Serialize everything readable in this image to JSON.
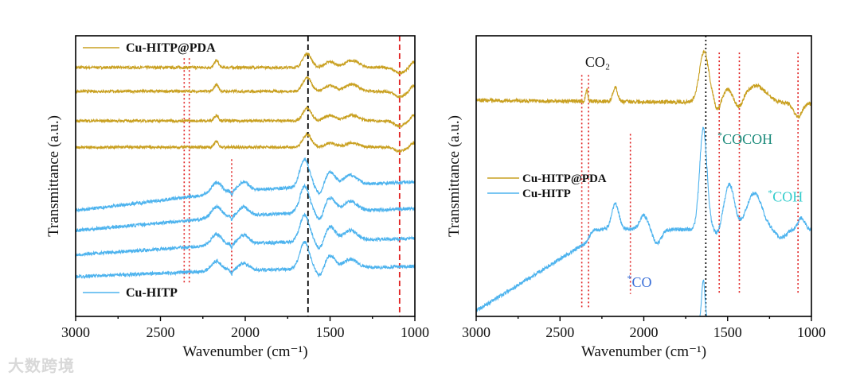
{
  "chart_data": [
    {
      "type": "line",
      "panel": "left",
      "xlabel": "Wavenumber (cm⁻¹)",
      "ylabel": "Transmittance (a.u.)",
      "xlim": [
        3000,
        1000
      ],
      "ylim": [
        0,
        10
      ],
      "xticks": [
        3000,
        2500,
        2000,
        1500,
        1000
      ],
      "legend": [
        {
          "name": "Cu-HITP@PDA",
          "color": "#c9a020",
          "position": "top-left"
        },
        {
          "name": "Cu-HITP",
          "color": "#4db3ee",
          "position": "bottom-left"
        }
      ],
      "vlines": [
        {
          "x": 1630,
          "color": "#000000",
          "style": "dashed"
        },
        {
          "x": 1090,
          "color": "#e02020",
          "style": "dashed"
        },
        {
          "x": 2360,
          "color": "#e02020",
          "style": "dotted",
          "range": [
            1.2,
            9.2
          ]
        },
        {
          "x": 2330,
          "color": "#e02020",
          "style": "dotted",
          "range": [
            1.2,
            9.2
          ]
        },
        {
          "x": 2080,
          "color": "#e02020",
          "style": "dotted",
          "range": [
            1.5,
            5.6
          ]
        }
      ],
      "series": [
        {
          "name": "Cu-HITP@PDA",
          "color": "#c9a020",
          "baseline": [
            [
              3000,
              8.87
            ],
            [
              1000,
              8.87
            ]
          ],
          "peaks": [
            [
              1635,
              0.5,
              25
            ],
            [
              2170,
              0.25,
              12
            ],
            [
              1500,
              0.2,
              30
            ],
            [
              1370,
              0.25,
              40
            ],
            [
              1090,
              -0.2,
              30
            ],
            [
              1010,
              0.2,
              15
            ]
          ],
          "noise": 0.05
        },
        {
          "name": "Cu-HITP@PDA",
          "color": "#c9a020",
          "baseline": [
            [
              3000,
              8.02
            ],
            [
              1000,
              8.02
            ]
          ],
          "peaks": [
            [
              1635,
              0.5,
              25
            ],
            [
              2170,
              0.25,
              12
            ],
            [
              1500,
              0.2,
              30
            ],
            [
              1370,
              0.25,
              40
            ],
            [
              1090,
              -0.2,
              30
            ],
            [
              1010,
              0.2,
              15
            ]
          ],
          "noise": 0.05
        },
        {
          "name": "Cu-HITP@PDA",
          "color": "#c9a020",
          "baseline": [
            [
              3000,
              6.97
            ],
            [
              1000,
              6.97
            ]
          ],
          "peaks": [
            [
              1635,
              0.45,
              25
            ],
            [
              2170,
              0.2,
              12
            ],
            [
              1500,
              0.2,
              30
            ],
            [
              1370,
              0.2,
              40
            ],
            [
              1090,
              -0.2,
              30
            ],
            [
              1010,
              0.2,
              15
            ]
          ],
          "noise": 0.05
        },
        {
          "name": "Cu-HITP@PDA",
          "color": "#c9a020",
          "baseline": [
            [
              3000,
              6.03
            ],
            [
              1000,
              6.03
            ]
          ],
          "peaks": [
            [
              1635,
              0.45,
              25
            ],
            [
              2170,
              0.2,
              12
            ],
            [
              1500,
              0.15,
              30
            ],
            [
              1370,
              0.15,
              40
            ],
            [
              1090,
              -0.15,
              30
            ],
            [
              1010,
              0.15,
              15
            ]
          ],
          "noise": 0.05
        },
        {
          "name": "Cu-HITP",
          "color": "#4db3ee",
          "baseline": [
            [
              3000,
              3.77
            ],
            [
              2000,
              4.5
            ],
            [
              1000,
              4.8
            ]
          ],
          "peaks": [
            [
              1650,
              1.0,
              28
            ],
            [
              2170,
              0.4,
              30
            ],
            [
              2010,
              0.3,
              30
            ],
            [
              1500,
              0.5,
              30
            ],
            [
              1380,
              0.35,
              40
            ],
            [
              2080,
              -0.15,
              5
            ],
            [
              1560,
              -0.3,
              20
            ]
          ],
          "noise": 0.06
        },
        {
          "name": "Cu-HITP",
          "color": "#4db3ee",
          "baseline": [
            [
              3000,
              3.06
            ],
            [
              2000,
              3.6
            ],
            [
              1000,
              3.85
            ]
          ],
          "peaks": [
            [
              1650,
              0.95,
              28
            ],
            [
              2170,
              0.4,
              30
            ],
            [
              2010,
              0.3,
              30
            ],
            [
              1500,
              0.5,
              30
            ],
            [
              1380,
              0.35,
              40
            ],
            [
              2080,
              -0.15,
              5
            ],
            [
              1560,
              -0.3,
              20
            ]
          ],
          "noise": 0.06
        },
        {
          "name": "Cu-HITP",
          "color": "#4db3ee",
          "baseline": [
            [
              3000,
              2.2
            ],
            [
              2000,
              2.6
            ],
            [
              1000,
              2.78
            ]
          ],
          "peaks": [
            [
              1650,
              0.95,
              28
            ],
            [
              2170,
              0.4,
              30
            ],
            [
              2010,
              0.3,
              30
            ],
            [
              1500,
              0.5,
              30
            ],
            [
              1380,
              0.35,
              40
            ],
            [
              2080,
              -0.15,
              5
            ],
            [
              1560,
              -0.3,
              20
            ]
          ],
          "noise": 0.06
        },
        {
          "name": "Cu-HITP",
          "color": "#4db3ee",
          "baseline": [
            [
              3000,
              1.42
            ],
            [
              2000,
              1.65
            ],
            [
              1000,
              1.78
            ]
          ],
          "peaks": [
            [
              1650,
              0.95,
              28
            ],
            [
              2170,
              0.35,
              30
            ],
            [
              2010,
              0.25,
              30
            ],
            [
              1500,
              0.45,
              30
            ],
            [
              1380,
              0.3,
              40
            ],
            [
              2080,
              -0.15,
              5
            ],
            [
              1560,
              -0.3,
              20
            ]
          ],
          "noise": 0.06
        }
      ]
    },
    {
      "type": "line",
      "panel": "right",
      "xlabel": "Wavenumber (cm⁻¹)",
      "ylabel": "Transmittance (a.u.)",
      "xlim": [
        3000,
        1000
      ],
      "ylim": [
        0,
        10
      ],
      "xticks": [
        3000,
        2500,
        2000,
        1500,
        1000
      ],
      "legend": [
        {
          "name": "Cu-HITP@PDA",
          "color": "#c9a020",
          "position": "middle-left"
        },
        {
          "name": "Cu-HITP",
          "color": "#4db3ee",
          "position": "middle-left"
        }
      ],
      "vlines": [
        {
          "x": 1630,
          "color": "#000000",
          "style": "dotted"
        },
        {
          "x": 2370,
          "color": "#e02020",
          "style": "dotted",
          "range": [
            0.3,
            8.6
          ]
        },
        {
          "x": 2330,
          "color": "#e02020",
          "style": "dotted",
          "range": [
            0.3,
            8.6
          ]
        },
        {
          "x": 2080,
          "color": "#e02020",
          "style": "dotted",
          "range": [
            0.8,
            6.5
          ]
        },
        {
          "x": 1550,
          "color": "#e02020",
          "style": "dotted",
          "range": [
            0.8,
            9.4
          ]
        },
        {
          "x": 1430,
          "color": "#e02020",
          "style": "dotted",
          "range": [
            0.8,
            9.4
          ]
        },
        {
          "x": 1080,
          "color": "#e02020",
          "style": "dotted",
          "range": [
            0.8,
            9.4
          ]
        }
      ],
      "annotations": [
        {
          "star": "",
          "text": "CO₂",
          "x": 2350,
          "y": 8.9,
          "color": "#111111"
        },
        {
          "star": "*",
          "text": "COCOH",
          "x": 1560,
          "y": 6.15,
          "color": "#1a8a7a"
        },
        {
          "star": "*",
          "text": "COH",
          "x": 1260,
          "y": 4.1,
          "color": "#33cccc"
        },
        {
          "star": "*",
          "text": "CO",
          "x": 2100,
          "y": 1.05,
          "color": "#3a6fd8"
        }
      ],
      "series": [
        {
          "name": "Cu-HITP@PDA",
          "color": "#c9a020",
          "baseline": [
            [
              3000,
              7.7
            ],
            [
              1000,
              7.6
            ]
          ],
          "peaks": [
            [
              1640,
              1.8,
              28
            ],
            [
              2170,
              0.5,
              14
            ],
            [
              2340,
              0.4,
              7
            ],
            [
              1330,
              0.6,
              60
            ],
            [
              1500,
              0.45,
              25
            ],
            [
              1080,
              -0.5,
              25
            ],
            [
              1560,
              -0.3,
              15
            ],
            [
              1430,
              -0.3,
              20
            ]
          ],
          "noise": 0.07
        },
        {
          "name": "Cu-HITP",
          "color": "#4db3ee",
          "baseline": [
            [
              3000,
              0.2
            ],
            [
              2350,
              2.6
            ],
            [
              2300,
              3.1
            ],
            [
              1000,
              3.1
            ]
          ],
          "peaks": [
            [
              1645,
              3.6,
              22
            ],
            [
              2170,
              0.9,
              22
            ],
            [
              2000,
              0.5,
              25
            ],
            [
              1920,
              -0.5,
              25
            ],
            [
              1490,
              1.6,
              30
            ],
            [
              1340,
              1.3,
              45
            ],
            [
              1560,
              -0.2,
              15
            ],
            [
              1180,
              -0.3,
              30
            ],
            [
              1060,
              0.4,
              20
            ]
          ],
          "noise": 0.07
        },
        {
          "name": "Cu-HITP",
          "color": "#4db3ee",
          "xrange": [
            1690,
            1612
          ],
          "baseline": [
            [
              1690,
              -0.2
            ],
            [
              1612,
              -0.2
            ]
          ],
          "peaks": [
            [
              1645,
              1.5,
              10
            ]
          ],
          "noise": 0.03
        }
      ]
    }
  ],
  "watermark": "大数跨境"
}
